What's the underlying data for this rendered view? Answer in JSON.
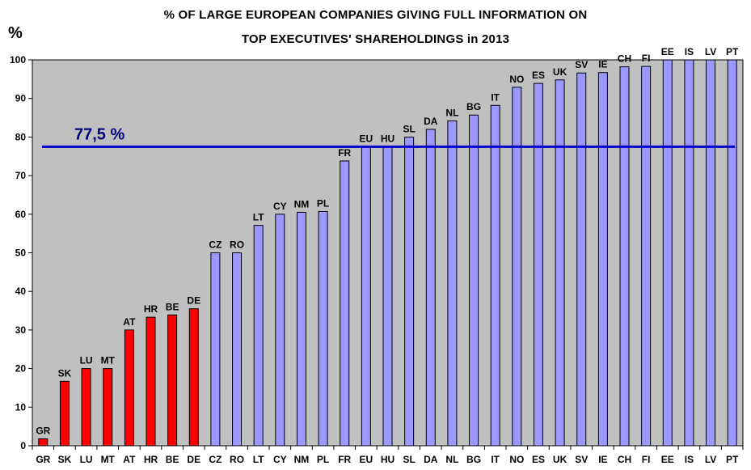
{
  "chart_data": {
    "type": "bar",
    "title_line1": "% OF LARGE EUROPEAN  COMPANIES  GIVING  FULL  INFORMATION  ON",
    "title_line2": "TOP EXECUTIVES' SHAREHOLDINGS  in 2013",
    "ylabel": "%",
    "xlabel": "",
    "ylim": [
      0,
      100
    ],
    "yticks": [
      0,
      10,
      20,
      30,
      40,
      50,
      60,
      70,
      80,
      90,
      100
    ],
    "grid": false,
    "categories": [
      "GR",
      "SK",
      "LU",
      "MT",
      "AT",
      "HR",
      "BE",
      "DE",
      "CZ",
      "RO",
      "LT",
      "CY",
      "NM",
      "PL",
      "FR",
      "EU",
      "HU",
      "SL",
      "DA",
      "NL",
      "BG",
      "IT",
      "NO",
      "ES",
      "UK",
      "SV",
      "IE",
      "CH",
      "FI",
      "EE",
      "IS",
      "LV",
      "PT"
    ],
    "values": [
      1.8,
      16.7,
      20,
      20,
      30,
      33.3,
      33.9,
      35.5,
      50,
      50,
      57.1,
      60,
      60.5,
      60.7,
      73.8,
      77.5,
      77.5,
      80,
      82,
      84.2,
      85.7,
      88.2,
      92.9,
      93.9,
      94.8,
      96.6,
      96.7,
      98.2,
      98.3,
      100,
      100,
      100,
      100
    ],
    "bar_colors": [
      "#ff0000",
      "#ff0000",
      "#ff0000",
      "#ff0000",
      "#ff0000",
      "#ff0000",
      "#ff0000",
      "#ff0000",
      "#9999ff",
      "#9999ff",
      "#9999ff",
      "#9999ff",
      "#9999ff",
      "#9999ff",
      "#9999ff",
      "#9999ff",
      "#9999ff",
      "#9999ff",
      "#9999ff",
      "#9999ff",
      "#9999ff",
      "#9999ff",
      "#9999ff",
      "#9999ff",
      "#9999ff",
      "#9999ff",
      "#9999ff",
      "#9999ff",
      "#9999ff",
      "#9999ff",
      "#9999ff",
      "#9999ff",
      "#9999ff"
    ],
    "reference_line": {
      "value": 77.5,
      "label": "77,5 %",
      "color": "#0000cc"
    },
    "plot_background": "#c0c0c0"
  }
}
